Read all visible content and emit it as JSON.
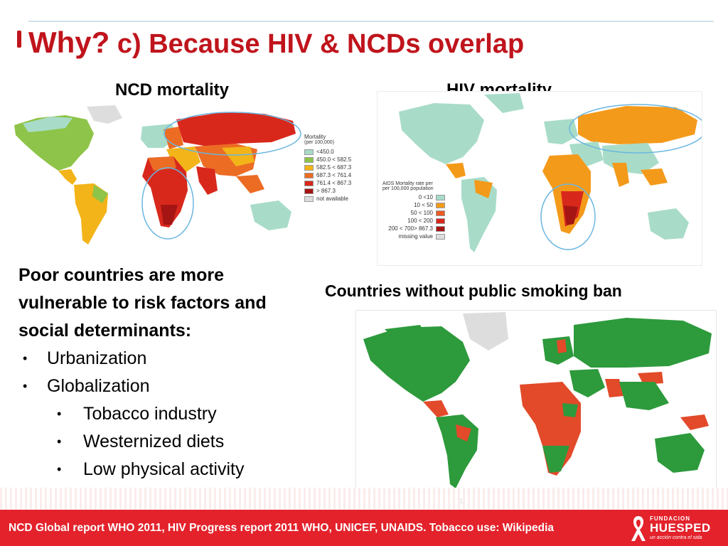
{
  "title": {
    "why": "Why?",
    "rest": " c) Because HIV & NCDs overlap"
  },
  "maps": {
    "ncd": {
      "label": "NCD mortality",
      "legend_title": "Mortality",
      "legend_sub": "(per 100,000)",
      "legend": [
        {
          "label": "<450.0",
          "color": "#a8dcc8"
        },
        {
          "label": "450.0 < 582.5",
          "color": "#8ec449"
        },
        {
          "label": "582.5 < 687.3",
          "color": "#f2b418"
        },
        {
          "label": "687.3 < 761.4",
          "color": "#ec6c24"
        },
        {
          "label": "761.4 < 867.3",
          "color": "#d8281c"
        },
        {
          "label": "> 867.3",
          "color": "#a51513"
        },
        {
          "label": "not available",
          "color": "#dddddd"
        }
      ]
    },
    "hiv": {
      "label": "HIV mortality",
      "legend_title": "AIDS Mortality rate per",
      "legend_sub": "per 100,000 population",
      "legend": [
        {
          "label": "0 <10",
          "color": "#a8dcc8"
        },
        {
          "label": "10 < 50",
          "color": "#f49a1a"
        },
        {
          "label": "50 < 100",
          "color": "#ec5a24"
        },
        {
          "label": "100 < 200",
          "color": "#d8281c"
        },
        {
          "label": "200 < 700> 867.3",
          "color": "#a51513"
        },
        {
          "label": "missing value",
          "color": "#dddddd"
        }
      ]
    },
    "smoking": {
      "label": "Countries without public smoking ban"
    }
  },
  "body": {
    "lead_lines": [
      "Poor countries are more",
      "vulnerable to risk factors and",
      "social determinants:"
    ],
    "bullets": [
      "Urbanization",
      "Globalization"
    ],
    "sub_bullets": [
      "Tobacco industry",
      "Westernized diets",
      "Low physical activity"
    ]
  },
  "page_number": "1",
  "footer": {
    "text": "NCD Global report WHO 2011,  HIV Progress report 2011 WHO, UNICEF, UNAIDS. Tobacco use: Wikipedia"
  },
  "logo": {
    "top": "FUNDACION",
    "name": "HUESPED",
    "sub": "un acción contra el sida"
  },
  "colors": {
    "accent_red": "#c0141c",
    "footer_red": "#e3222b",
    "ban_green": "#2d9a3c",
    "no_ban_red": "#e24a2a"
  }
}
